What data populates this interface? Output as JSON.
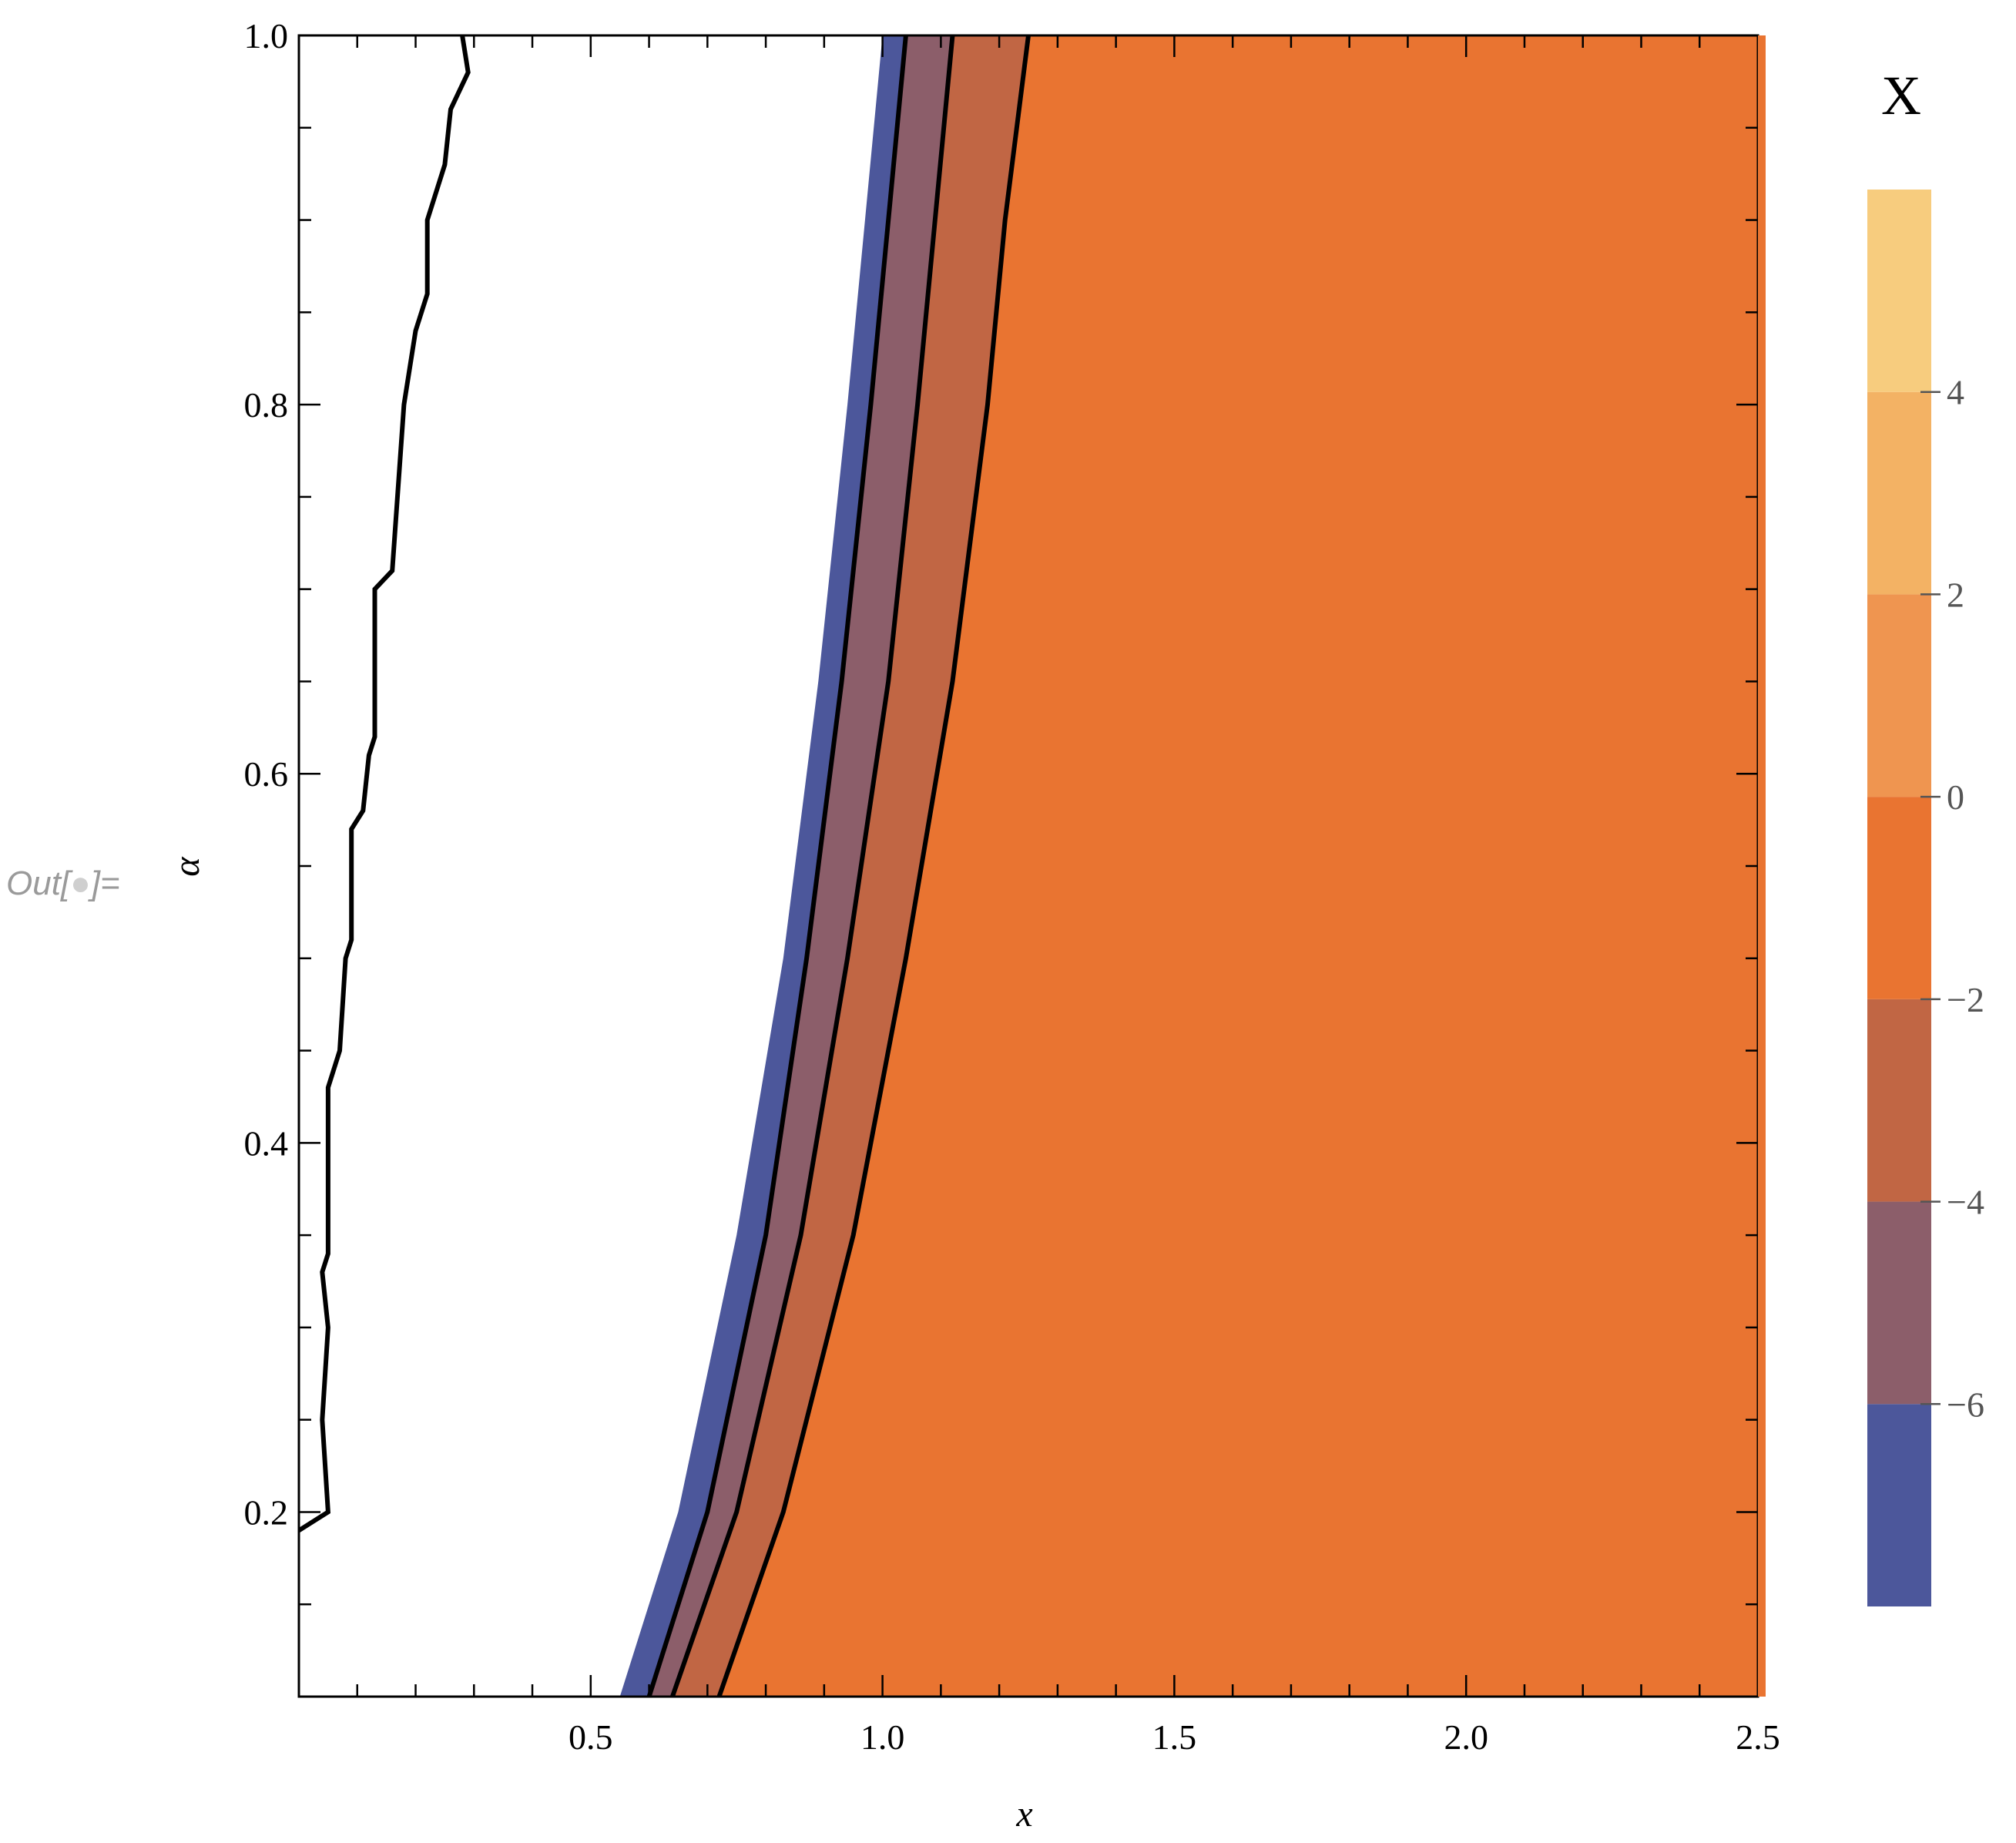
{
  "cell_label": {
    "prefix": "Out[",
    "suffix": "]="
  },
  "chart_data": {
    "type": "contour",
    "title": "",
    "xlabel": "x",
    "ylabel": "α",
    "xlim": [
      0,
      2.5
    ],
    "ylim": [
      0.1,
      1.0
    ],
    "x_ticks": [
      {
        "value": 0.5,
        "label": "0.5"
      },
      {
        "value": 1.0,
        "label": "1.0"
      },
      {
        "value": 1.5,
        "label": "1.5"
      },
      {
        "value": 2.0,
        "label": "2.0"
      },
      {
        "value": 2.5,
        "label": "2.5"
      }
    ],
    "x_minor_step": 0.1,
    "y_ticks": [
      {
        "value": 0.2,
        "label": "0.2"
      },
      {
        "value": 0.4,
        "label": "0.4"
      },
      {
        "value": 0.6,
        "label": "0.6"
      },
      {
        "value": 0.8,
        "label": "0.8"
      },
      {
        "value": 1.0,
        "label": "1.0"
      }
    ],
    "y_minor_step": 0.05,
    "grid": false,
    "background_region_color": "#ffffff",
    "contour_lines": [
      {
        "name": "boundary-left",
        "points": [
          [
            0.0,
            0.19
          ],
          [
            0.05,
            0.2
          ],
          [
            0.04,
            0.25
          ],
          [
            0.05,
            0.3
          ],
          [
            0.04,
            0.33
          ],
          [
            0.05,
            0.34
          ],
          [
            0.05,
            0.43
          ],
          [
            0.07,
            0.45
          ],
          [
            0.08,
            0.5
          ],
          [
            0.09,
            0.51
          ],
          [
            0.09,
            0.57
          ],
          [
            0.11,
            0.58
          ],
          [
            0.12,
            0.61
          ],
          [
            0.13,
            0.62
          ],
          [
            0.13,
            0.7
          ],
          [
            0.16,
            0.71
          ],
          [
            0.18,
            0.8
          ],
          [
            0.2,
            0.84
          ],
          [
            0.22,
            0.86
          ],
          [
            0.22,
            0.9
          ],
          [
            0.25,
            0.93
          ],
          [
            0.26,
            0.96
          ],
          [
            0.29,
            0.98
          ],
          [
            0.28,
            1.0
          ]
        ]
      },
      {
        "name": "level--6",
        "points": [
          [
            0.6,
            0.1
          ],
          [
            0.7,
            0.2
          ],
          [
            0.8,
            0.35
          ],
          [
            0.87,
            0.5
          ],
          [
            0.93,
            0.65
          ],
          [
            0.98,
            0.8
          ],
          [
            1.01,
            0.9
          ],
          [
            1.04,
            1.0
          ]
        ]
      },
      {
        "name": "level--4",
        "points": [
          [
            0.64,
            0.1
          ],
          [
            0.75,
            0.2
          ],
          [
            0.86,
            0.35
          ],
          [
            0.94,
            0.5
          ],
          [
            1.01,
            0.65
          ],
          [
            1.06,
            0.8
          ],
          [
            1.09,
            0.9
          ],
          [
            1.12,
            1.0
          ]
        ]
      },
      {
        "name": "level--2",
        "points": [
          [
            0.72,
            0.1
          ],
          [
            0.83,
            0.2
          ],
          [
            0.95,
            0.35
          ],
          [
            1.04,
            0.5
          ],
          [
            1.12,
            0.65
          ],
          [
            1.18,
            0.8
          ],
          [
            1.21,
            0.9
          ],
          [
            1.25,
            1.0
          ]
        ]
      }
    ],
    "blue_edge": [
      [
        0.55,
        0.1
      ],
      [
        0.65,
        0.2
      ],
      [
        0.75,
        0.35
      ],
      [
        0.83,
        0.5
      ],
      [
        0.89,
        0.65
      ],
      [
        0.94,
        0.8
      ],
      [
        0.97,
        0.9
      ],
      [
        1.0,
        1.0
      ]
    ],
    "legend": {
      "title": "X",
      "placement": "right",
      "range": [
        -8,
        6
      ],
      "bands": [
        {
          "from": -8,
          "to": -6,
          "color": "#4c579b"
        },
        {
          "from": -6,
          "to": -4,
          "color": "#8c5e6a"
        },
        {
          "from": -4,
          "to": -2,
          "color": "#c16644"
        },
        {
          "from": -2,
          "to": 0,
          "color": "#e97431"
        },
        {
          "from": 0,
          "to": 2,
          "color": "#ef9550"
        },
        {
          "from": 2,
          "to": 4,
          "color": "#f3b264"
        },
        {
          "from": 4,
          "to": 6,
          "color": "#f7cc7e"
        }
      ],
      "ticks": [
        {
          "value": -6,
          "label": "−6"
        },
        {
          "value": -4,
          "label": "−4"
        },
        {
          "value": -2,
          "label": "−2"
        },
        {
          "value": 0,
          "label": "0"
        },
        {
          "value": 2,
          "label": "2"
        },
        {
          "value": 4,
          "label": "4"
        }
      ]
    }
  }
}
